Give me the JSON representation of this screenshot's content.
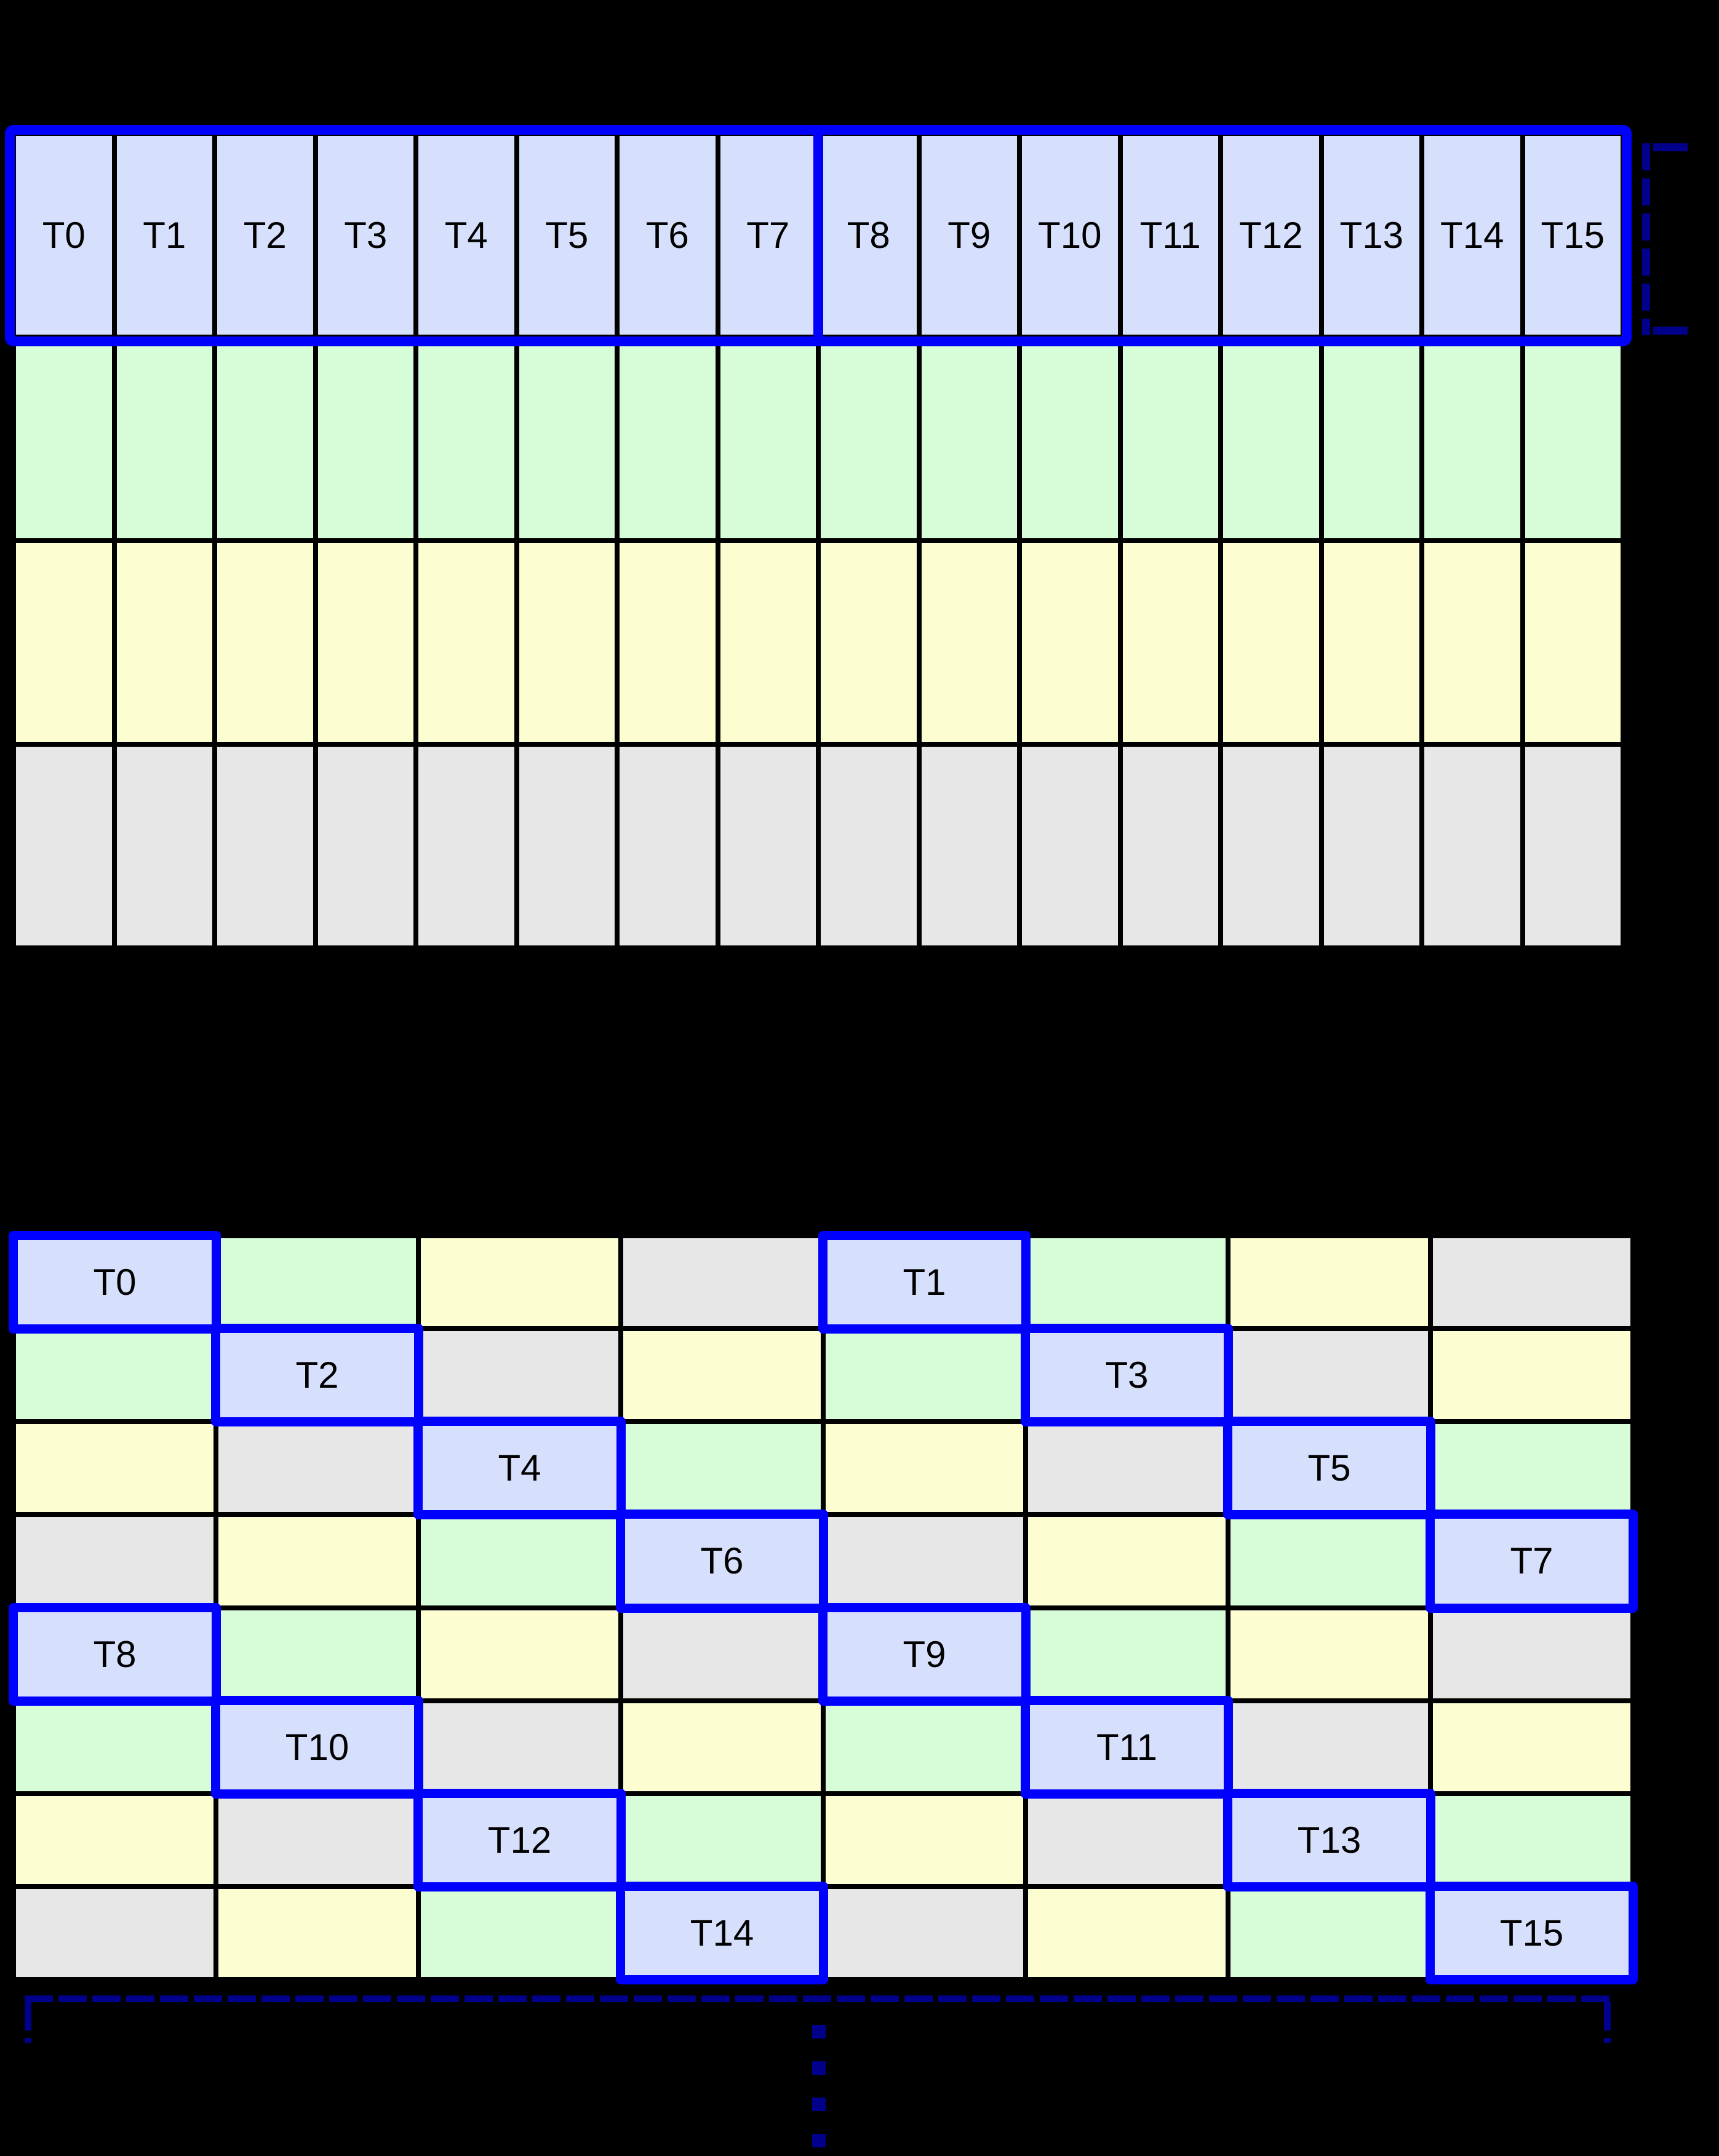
{
  "colors": {
    "background": "#000000",
    "grid_line": "#000000",
    "label_text": "#000000",
    "highlight_border": "#0000ff",
    "bracket": "#00008b",
    "palette": {
      "lavender": "#d6dffb",
      "green": "#d7fdd8",
      "yellow": "#fdfdd2",
      "gray": "#e7e7e7"
    }
  },
  "top_grid": {
    "columns": 16,
    "rows": 4,
    "row_colors": [
      "lavender",
      "green",
      "yellow",
      "gray"
    ],
    "header_row_labels": [
      "T0",
      "T1",
      "T2",
      "T3",
      "T4",
      "T5",
      "T6",
      "T7",
      "T8",
      "T9",
      "T10",
      "T11",
      "T12",
      "T13",
      "T14",
      "T15"
    ],
    "divider_after_column": 8
  },
  "bottom_grid": {
    "columns": 8,
    "rows": 8,
    "cell_colors": [
      [
        "lavender",
        "green",
        "yellow",
        "gray",
        "lavender",
        "green",
        "yellow",
        "gray"
      ],
      [
        "green",
        "lavender",
        "gray",
        "yellow",
        "green",
        "lavender",
        "gray",
        "yellow"
      ],
      [
        "yellow",
        "gray",
        "lavender",
        "green",
        "yellow",
        "gray",
        "lavender",
        "green"
      ],
      [
        "gray",
        "yellow",
        "green",
        "lavender",
        "gray",
        "yellow",
        "green",
        "lavender"
      ],
      [
        "lavender",
        "green",
        "yellow",
        "gray",
        "lavender",
        "green",
        "yellow",
        "gray"
      ],
      [
        "green",
        "lavender",
        "gray",
        "yellow",
        "green",
        "lavender",
        "gray",
        "yellow"
      ],
      [
        "yellow",
        "gray",
        "lavender",
        "green",
        "yellow",
        "gray",
        "lavender",
        "green"
      ],
      [
        "gray",
        "yellow",
        "green",
        "lavender",
        "gray",
        "yellow",
        "green",
        "lavender"
      ]
    ],
    "threads": [
      {
        "label": "T0",
        "row": 0,
        "col": 0
      },
      {
        "label": "T1",
        "row": 0,
        "col": 4
      },
      {
        "label": "T2",
        "row": 1,
        "col": 1
      },
      {
        "label": "T3",
        "row": 1,
        "col": 5
      },
      {
        "label": "T4",
        "row": 2,
        "col": 2
      },
      {
        "label": "T5",
        "row": 2,
        "col": 6
      },
      {
        "label": "T6",
        "row": 3,
        "col": 3
      },
      {
        "label": "T7",
        "row": 3,
        "col": 7
      },
      {
        "label": "T8",
        "row": 4,
        "col": 0
      },
      {
        "label": "T9",
        "row": 4,
        "col": 4
      },
      {
        "label": "T10",
        "row": 5,
        "col": 1
      },
      {
        "label": "T11",
        "row": 5,
        "col": 5
      },
      {
        "label": "T12",
        "row": 6,
        "col": 2
      },
      {
        "label": "T13",
        "row": 6,
        "col": 6
      },
      {
        "label": "T14",
        "row": 7,
        "col": 3
      },
      {
        "label": "T15",
        "row": 7,
        "col": 7
      }
    ]
  }
}
